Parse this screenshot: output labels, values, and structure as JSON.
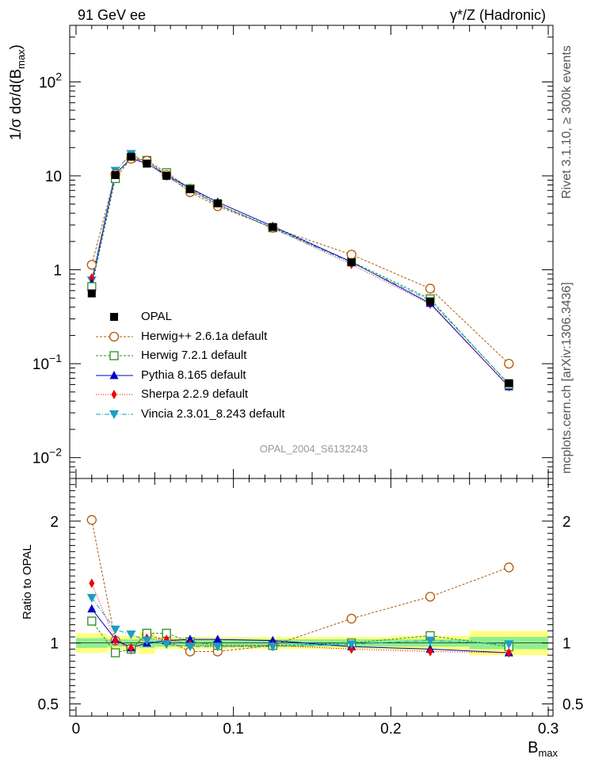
{
  "header": {
    "left": "91 GeV ee",
    "right": "γ*/Z (Hadronic)"
  },
  "side": {
    "rivet": "Rivet 3.1.10, ≥ 300k events",
    "mcplots": "mcplots.cern.ch [arXiv:1306.3436]"
  },
  "colors": {
    "data": "#000000",
    "herwigpp": "#b35806",
    "herwig7": "#2e8b22",
    "pythia": "#0000cc",
    "sherpa": "#ee0000",
    "vincia": "#1a9fc0",
    "band_inner": "#90ee90",
    "band_outer": "#ffff80"
  },
  "chart_data": [
    {
      "type": "line",
      "title": "",
      "xlabel": "B_max",
      "ylabel": "1/σ dσ/d(B_max)",
      "yscale": "log",
      "ylim": [
        0.006,
        400
      ],
      "xlim": [
        -0.004,
        0.303
      ],
      "yticks": [
        {
          "value": 0.01,
          "base": "10",
          "exp": "−2"
        },
        {
          "value": 0.1,
          "base": "10",
          "exp": "−1"
        },
        {
          "value": 1,
          "base": "1",
          "exp": ""
        },
        {
          "value": 10,
          "base": "10",
          "exp": ""
        },
        {
          "value": 100,
          "base": "10",
          "exp": "2"
        }
      ],
      "watermark": "OPAL_2004_S6132243",
      "x": [
        0.01,
        0.025,
        0.035,
        0.045,
        0.0575,
        0.0725,
        0.09,
        0.125,
        0.175,
        0.225,
        0.275
      ],
      "bin_edges": [
        0,
        0.02,
        0.03,
        0.04,
        0.05,
        0.065,
        0.08,
        0.1,
        0.15,
        0.2,
        0.25,
        0.3
      ],
      "series": [
        {
          "name": "OPAL",
          "key": "data",
          "values": [
            0.56,
            10.2,
            16.0,
            13.5,
            10.0,
            7.2,
            5.1,
            2.85,
            1.2,
            0.46,
            0.062
          ]
        },
        {
          "name": "Herwig++ 2.6.1a default",
          "key": "herwigpp",
          "values": [
            1.13,
            10.4,
            15.2,
            14.5,
            10.2,
            6.7,
            4.75,
            2.8,
            1.45,
            0.63,
            0.1
          ]
        },
        {
          "name": "Herwig 7.2.1 default",
          "key": "herwig7",
          "values": [
            0.66,
            9.35,
            15.5,
            14.6,
            10.8,
            7.3,
            5.0,
            2.8,
            1.22,
            0.49,
            0.06
          ]
        },
        {
          "name": "Pythia 8.165 default",
          "key": "pythia",
          "values": [
            0.72,
            10.5,
            15.3,
            13.5,
            10.2,
            7.4,
            5.25,
            2.9,
            1.21,
            0.44,
            0.057
          ]
        },
        {
          "name": "Sherpa 2.2.9 default",
          "key": "sherpa",
          "values": [
            0.82,
            10.4,
            15.6,
            14.1,
            10.3,
            7.1,
            4.95,
            2.78,
            1.14,
            0.43,
            0.057
          ]
        },
        {
          "name": "Vincia 2.3.01_8.243 default",
          "key": "vincia",
          "values": [
            0.77,
            11.3,
            17.1,
            13.7,
            9.85,
            7.0,
            4.95,
            2.75,
            1.19,
            0.47,
            0.061
          ]
        }
      ]
    },
    {
      "type": "line",
      "title": "",
      "xlabel": "B_max",
      "ylabel": "Ratio to OPAL",
      "ylim": [
        0.4,
        2.35
      ],
      "xlim": [
        -0.004,
        0.303
      ],
      "yticks": [
        0.5,
        1,
        2
      ],
      "ytick_labels": [
        "0.5",
        "1",
        "2"
      ],
      "xticks": [
        0,
        0.1,
        0.2,
        0.3
      ],
      "xtick_labels": [
        "0",
        "0.1",
        "0.2",
        "0.3"
      ],
      "x": [
        0.01,
        0.025,
        0.035,
        0.045,
        0.0575,
        0.0725,
        0.09,
        0.125,
        0.175,
        0.225,
        0.275
      ],
      "band_inner": [
        0.04,
        0.03,
        0.03,
        0.04,
        0.03,
        0.03,
        0.03,
        0.03,
        0.03,
        0.03,
        0.05
      ],
      "band_outer": [
        0.08,
        0.06,
        0.06,
        0.09,
        0.05,
        0.05,
        0.05,
        0.05,
        0.05,
        0.06,
        0.1
      ],
      "series": [
        {
          "name": "Herwig++ 2.6.1a default",
          "key": "herwigpp",
          "values": [
            2.01,
            1.02,
            0.95,
            1.07,
            1.02,
            0.93,
            0.93,
            0.98,
            1.2,
            1.38,
            1.62
          ]
        },
        {
          "name": "Herwig 7.2.1 default",
          "key": "herwig7",
          "values": [
            1.18,
            0.92,
            0.95,
            1.08,
            1.08,
            1.01,
            0.98,
            0.98,
            1.0,
            1.06,
            0.97
          ]
        },
        {
          "name": "Pythia 8.165 default",
          "key": "pythia",
          "values": [
            1.28,
            1.03,
            0.96,
            1.0,
            1.02,
            1.03,
            1.03,
            1.02,
            0.97,
            0.95,
            0.92
          ]
        },
        {
          "name": "Sherpa 2.2.9 default",
          "key": "sherpa",
          "values": [
            1.49,
            1.02,
            0.96,
            1.04,
            1.03,
            0.99,
            0.97,
            0.98,
            0.95,
            0.93,
            0.92
          ]
        },
        {
          "name": "Vincia 2.3.01_8.243 default",
          "key": "vincia",
          "values": [
            1.37,
            1.11,
            1.07,
            1.02,
            0.99,
            0.97,
            0.97,
            0.97,
            0.99,
            1.02,
            0.99
          ]
        }
      ]
    }
  ]
}
